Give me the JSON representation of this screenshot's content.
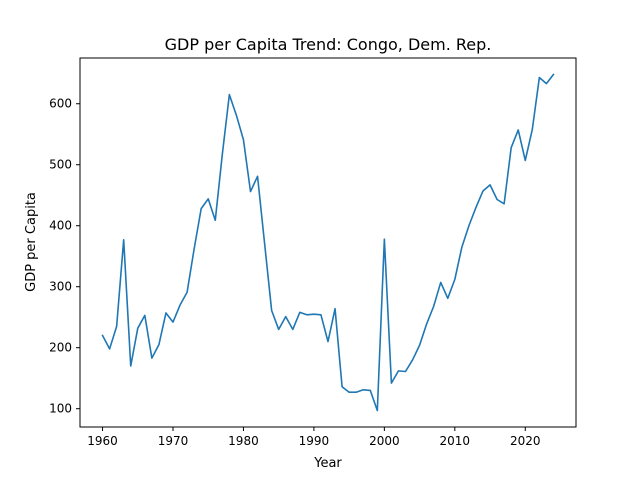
{
  "chart_data": {
    "type": "line",
    "title": "GDP per Capita Trend: Congo, Dem. Rep.",
    "xlabel": "Year",
    "ylabel": "GDP per Capita",
    "xlim": [
      1956.8,
      2027.2
    ],
    "ylim": [
      70,
      675
    ],
    "xticks": [
      "1960",
      "1970",
      "1980",
      "1990",
      "2000",
      "2010",
      "2020"
    ],
    "yticks": [
      "100",
      "200",
      "300",
      "400",
      "500",
      "600"
    ],
    "grid": false,
    "legend": "none",
    "line_color": "#1f77b4",
    "series": [
      {
        "x": [
          1960,
          1961,
          1962,
          1963,
          1964,
          1965,
          1966,
          1967,
          1968,
          1969,
          1970,
          1971,
          1972,
          1973,
          1974,
          1975,
          1976,
          1977,
          1978,
          1979,
          1980,
          1981,
          1982,
          1983,
          1984,
          1985,
          1986,
          1987,
          1988,
          1989,
          1990,
          1991,
          1992,
          1993,
          1994,
          1995,
          1996,
          1997,
          1998,
          1999,
          2000,
          2001,
          2002,
          2003,
          2004,
          2005,
          2006,
          2007,
          2008,
          2009,
          2010,
          2011,
          2012,
          2013,
          2014,
          2015,
          2016,
          2017,
          2018,
          2019,
          2020,
          2021,
          2022,
          2023,
          2024
        ],
        "values": [
          220,
          198,
          235,
          377,
          170,
          232,
          253,
          183,
          205,
          257,
          242,
          270,
          291,
          362,
          428,
          444,
          409,
          517,
          615,
          581,
          541,
          456,
          481,
          371,
          261,
          230,
          251,
          230,
          258,
          254,
          255,
          254,
          210,
          264,
          136,
          127,
          127,
          131,
          130,
          97,
          378,
          142,
          162,
          161,
          180,
          204,
          239,
          268,
          307,
          281,
          312,
          365,
          400,
          430,
          457,
          467,
          443,
          436,
          528,
          557,
          507,
          558,
          643,
          633,
          648
        ]
      }
    ]
  }
}
